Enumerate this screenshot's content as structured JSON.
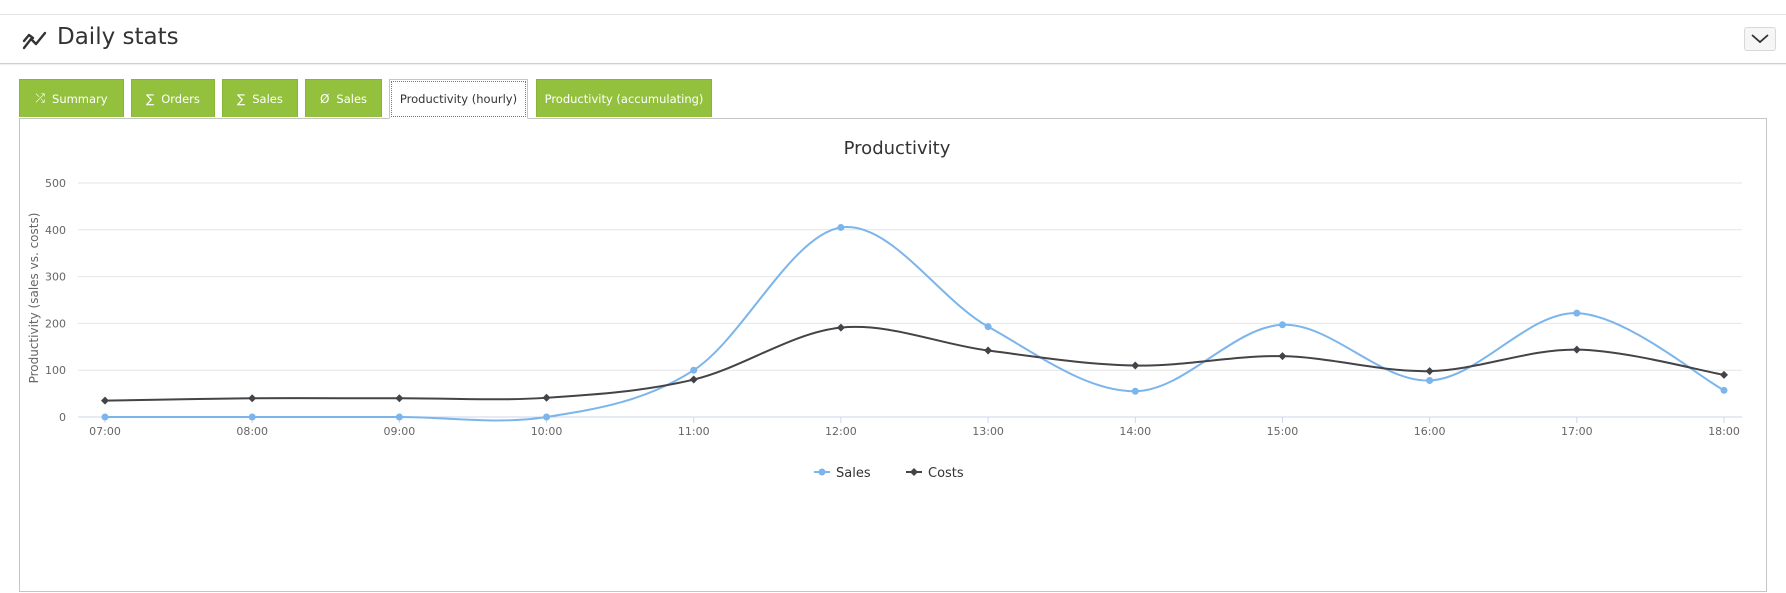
{
  "panel": {
    "title": "Daily stats",
    "title_icon": "line-chart-icon",
    "collapse_icon": "chevron-down-icon"
  },
  "tabs": [
    {
      "label": "Summary",
      "glyph": "⤮",
      "active": false
    },
    {
      "label": "Orders",
      "glyph": "∑",
      "active": false
    },
    {
      "label": "Sales",
      "glyph": "∑",
      "active": false
    },
    {
      "label": "Sales",
      "glyph": "Ø",
      "active": false
    },
    {
      "label": "Productivity (hourly)",
      "glyph": "",
      "active": true
    },
    {
      "label": "Productivity (accumulating)",
      "glyph": "",
      "active": false
    }
  ],
  "colors": {
    "tab_green": "#93c13d",
    "sales": "#7cb5ec",
    "costs": "#434348"
  },
  "chart_data": {
    "type": "line",
    "title": "Productivity",
    "xlabel": "",
    "ylabel": "Productivity (sales vs. costs)",
    "categories": [
      "07:00",
      "08:00",
      "09:00",
      "10:00",
      "11:00",
      "12:00",
      "13:00",
      "14:00",
      "15:00",
      "16:00",
      "17:00",
      "18:00"
    ],
    "ylim": [
      0,
      500
    ],
    "yticks": [
      0,
      100,
      200,
      300,
      400,
      500
    ],
    "grid": true,
    "smooth": true,
    "legend_position": "bottom-center",
    "series": [
      {
        "name": "Sales",
        "color": "#7cb5ec",
        "marker": "circle",
        "values": [
          0,
          0,
          0,
          0,
          100,
          405,
          193,
          55,
          197,
          78,
          222,
          57
        ]
      },
      {
        "name": "Costs",
        "color": "#434348",
        "marker": "diamond",
        "values": [
          35,
          40,
          40,
          41,
          80,
          191,
          142,
          110,
          130,
          98,
          144,
          90
        ]
      }
    ]
  }
}
